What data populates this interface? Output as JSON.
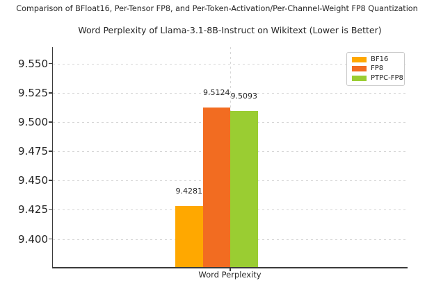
{
  "figure": {
    "suptitle": "Comparison of BFloat16, Per-Tensor FP8, and Per-Token-Activation/Per-Channel-Weight FP8 Quantization"
  },
  "chart_data": {
    "type": "bar",
    "title": "Word Perplexity of Llama-3.1-8B-Instruct on Wikitext (Lower is Better)",
    "suptitle": "Comparison of BFloat16, Per-Tensor FP8, and Per-Token-Activation/Per-Channel-Weight FP8 Quantization",
    "xlabel": "Word Perplexity",
    "ylabel": "",
    "categories": [
      "Word Perplexity"
    ],
    "series": [
      {
        "name": "BF16",
        "values": [
          9.4281
        ],
        "label": "9.4281",
        "color": "#FFA800"
      },
      {
        "name": "FP8",
        "values": [
          9.5124
        ],
        "label": "9.5124",
        "color": "#F26C21"
      },
      {
        "name": "PTPC-FP8",
        "values": [
          9.5093
        ],
        "label": "9.5093",
        "color": "#9ACD32"
      }
    ],
    "ylim": [
      9.376,
      9.564
    ],
    "yticks": [
      9.4,
      9.425,
      9.45,
      9.475,
      9.5,
      9.525,
      9.55
    ],
    "ytick_labels": [
      "9.400",
      "9.425",
      "9.450",
      "9.475",
      "9.500",
      "9.525",
      "9.550"
    ],
    "grid": true,
    "legend_position": "upper right",
    "legend_entries": [
      "BF16",
      "FP8",
      "PTPC-FP8"
    ]
  },
  "colors": {
    "background": "#ffffff",
    "grid": "#d6d6d6",
    "spine": "#3a3a3a",
    "text": "#262626",
    "legend_border": "#c9c9c9"
  }
}
